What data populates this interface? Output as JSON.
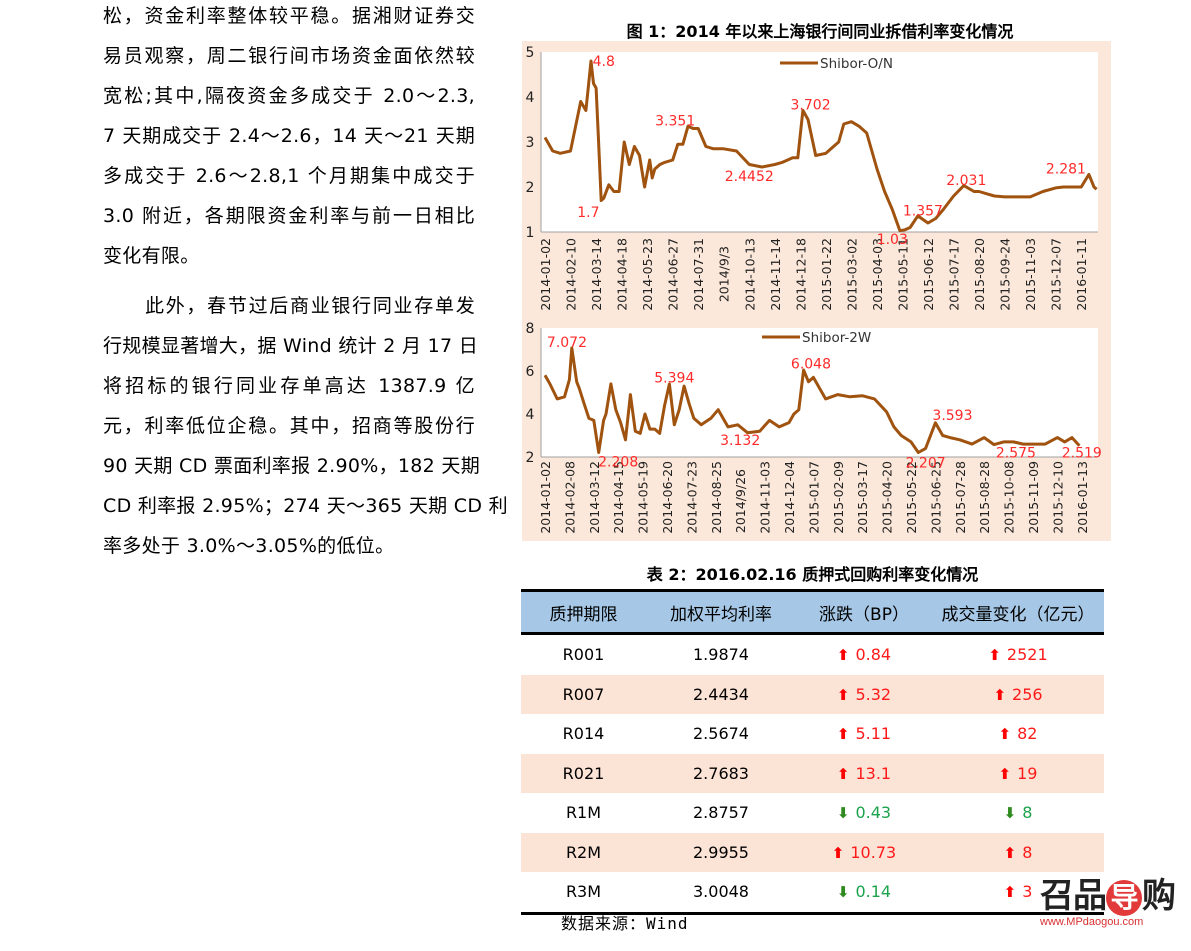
{
  "left_text": {
    "paragraph1_lines": [
      "松，资金利率整体较平稳。据湘财证券交",
      "易员观察，周二银行间市场资金面依然较",
      "宽松;其中,隔夜资金多成交于 2.0～2.3,",
      "7 天期成交于 2.4～2.6，14 天～21 天期",
      "多成交于 2.6～2.8,1 个月期集中成交于",
      "3.0 附近，各期限资金利率与前一日相比",
      "变化有限。"
    ],
    "paragraph2_lines": [
      "此外，春节过后商业银行同业存单发",
      "行规模显著增大，据 Wind 统计 2 月 17 日",
      "将招标的银行同业存单高达 1387.9 亿",
      "元，利率低位企稳。其中，招商等股份行",
      "90 天期 CD 票面利率报 2.90%，182 天期",
      "CD 利率报 2.95%；274 天～365 天期 CD 利",
      "率多处于 3.0%～3.05%的低位。"
    ]
  },
  "figure": {
    "title": "图 1：2014 年以来上海银行间同业拆借利率变化情况",
    "panel_color": "#fbe8da",
    "line_color": "#a0520f",
    "label_color": "#ff2a2a"
  },
  "chart_data": [
    {
      "type": "line",
      "title": "Shibor-O/N",
      "legend": [
        "Shibor-O/N"
      ],
      "xlabel": "",
      "ylabel": "",
      "ylim": [
        1,
        5
      ],
      "yticks": [
        1,
        2,
        3,
        4,
        5
      ],
      "grid": false,
      "legend_position": "top-center",
      "x_tick_labels": [
        "2014-01-02",
        "2014-02-10",
        "2014-03-14",
        "2014-04-18",
        "2014-05-23",
        "2014-06-27",
        "2014-07-31",
        "2014/9/3",
        "2014-10-13",
        "2014-11-14",
        "2014-12-18",
        "2015-01-22",
        "2015-03-02",
        "2015-04-03",
        "2015-05-11",
        "2015-06-12",
        "2015-07-17",
        "2015-08-20",
        "2015-09-24",
        "2015-11-03",
        "2015-12-07",
        "2016-01-11"
      ],
      "series": [
        {
          "name": "Shibor-O/N",
          "x": [
            0,
            0.3,
            0.6,
            1.0,
            1.4,
            1.6,
            1.8,
            1.9,
            2.0,
            2.1,
            2.2,
            2.3,
            2.5,
            2.7,
            2.9,
            3.1,
            3.3,
            3.5,
            3.7,
            3.9,
            4.1,
            4.2,
            4.3,
            4.5,
            4.7,
            5.0,
            5.2,
            5.4,
            5.6,
            5.8,
            6.0,
            6.3,
            6.6,
            7.0,
            7.5,
            8.0,
            8.5,
            9.0,
            9.3,
            9.5,
            9.7,
            9.9,
            10.1,
            10.3,
            10.6,
            11.0,
            11.3,
            11.5,
            11.7,
            12.0,
            12.3,
            12.6,
            13.0,
            13.3,
            13.6,
            13.9,
            14.1,
            14.3,
            14.6,
            15.0,
            15.3,
            15.6,
            16.0,
            16.4,
            16.8,
            17.0,
            17.3,
            17.6,
            18.0,
            18.5,
            19.0,
            19.5,
            20.0,
            20.3,
            20.6,
            21.0,
            21.3,
            21.5,
            21.6
          ],
          "values": [
            3.1,
            2.8,
            2.75,
            2.8,
            3.9,
            3.7,
            4.8,
            4.3,
            4.2,
            3.0,
            1.7,
            1.75,
            2.05,
            1.9,
            1.9,
            3.0,
            2.5,
            2.9,
            2.7,
            2.0,
            2.6,
            2.2,
            2.4,
            2.5,
            2.55,
            2.6,
            2.95,
            2.95,
            3.351,
            3.3,
            3.3,
            2.9,
            2.85,
            2.85,
            2.8,
            2.5,
            2.4452,
            2.5,
            2.55,
            2.6,
            2.65,
            2.65,
            3.702,
            3.5,
            2.7,
            2.75,
            2.9,
            3.0,
            3.4,
            3.45,
            3.35,
            3.2,
            2.4,
            1.9,
            1.5,
            1.03,
            1.05,
            1.1,
            1.357,
            1.2,
            1.3,
            1.5,
            1.8,
            2.031,
            1.9,
            1.9,
            1.85,
            1.8,
            1.78,
            1.78,
            1.78,
            1.9,
            1.98,
            2.0,
            2.0,
            2.0,
            2.281,
            2.0,
            1.95
          ]
        }
      ],
      "annotations": [
        {
          "text": "4.8",
          "x": 2.3,
          "y": 4.8
        },
        {
          "text": "1.7",
          "x": 1.7,
          "y": 1.45
        },
        {
          "text": "3.351",
          "x": 5.1,
          "y": 3.48
        },
        {
          "text": "2.4452",
          "x": 8.0,
          "y": 2.25
        },
        {
          "text": "3.702",
          "x": 10.4,
          "y": 3.83
        },
        {
          "text": "1.03",
          "x": 13.6,
          "y": 0.85
        },
        {
          "text": "1.357",
          "x": 14.8,
          "y": 1.48
        },
        {
          "text": "2.031",
          "x": 16.5,
          "y": 2.16
        },
        {
          "text": "2.281",
          "x": 20.4,
          "y": 2.41
        }
      ]
    },
    {
      "type": "line",
      "title": "Shibor-2W",
      "legend": [
        "Shibor-2W"
      ],
      "xlabel": "",
      "ylabel": "",
      "ylim": [
        2,
        8
      ],
      "yticks": [
        2,
        4,
        6,
        8
      ],
      "grid": false,
      "legend_position": "top-center",
      "x_tick_labels": [
        "2014-01-02",
        "2014-02-08",
        "2014-03-12",
        "2014-04-15",
        "2014-05-19",
        "2014-06-20",
        "2014-07-23",
        "2014-08-25",
        "2014/9/26",
        "2014-11-03",
        "2014-12-04",
        "2015-01-07",
        "2015-02-09",
        "2015-03-17",
        "2015-04-20",
        "2015-05-22",
        "2015-06-25",
        "2015-07-28",
        "2015-08-28",
        "2015-10-08",
        "2015-11-09",
        "2015-12-10",
        "2016-01-13"
      ],
      "series": [
        {
          "name": "Shibor-2W",
          "x": [
            0,
            0.2,
            0.5,
            0.8,
            1.0,
            1.1,
            1.3,
            1.4,
            1.6,
            1.8,
            2.0,
            2.2,
            2.4,
            2.5,
            2.7,
            2.9,
            3.1,
            3.3,
            3.5,
            3.7,
            3.9,
            4.1,
            4.3,
            4.5,
            4.7,
            4.9,
            5.1,
            5.3,
            5.5,
            5.7,
            5.9,
            6.1,
            6.4,
            6.8,
            7.1,
            7.5,
            7.9,
            8.3,
            8.8,
            9.2,
            9.6,
            10.0,
            10.2,
            10.4,
            10.6,
            10.8,
            11.0,
            11.5,
            12.0,
            12.5,
            13.0,
            13.5,
            14.0,
            14.3,
            14.6,
            15.0,
            15.3,
            15.6,
            16.0,
            16.3,
            16.6,
            17.0,
            17.5,
            18.0,
            18.4,
            18.8,
            19.2,
            19.6,
            20.0,
            20.5,
            21.0,
            21.3,
            21.6,
            21.9
          ],
          "values": [
            5.8,
            5.4,
            4.7,
            4.8,
            5.6,
            7.072,
            5.5,
            5.2,
            4.5,
            3.8,
            3.7,
            2.208,
            3.7,
            4.0,
            5.4,
            4.2,
            3.6,
            2.8,
            4.9,
            3.2,
            3.1,
            4.0,
            3.3,
            3.3,
            3.1,
            4.4,
            5.394,
            3.5,
            4.2,
            5.3,
            4.5,
            3.8,
            3.5,
            3.8,
            4.2,
            3.4,
            3.5,
            3.132,
            3.2,
            3.7,
            3.4,
            3.6,
            4.0,
            4.2,
            6.048,
            5.5,
            5.7,
            4.7,
            4.9,
            4.8,
            4.85,
            4.7,
            4.1,
            3.4,
            3.0,
            2.7,
            2.207,
            2.4,
            3.593,
            3.0,
            2.9,
            2.8,
            2.6,
            2.9,
            2.575,
            2.7,
            2.7,
            2.6,
            2.6,
            2.6,
            2.9,
            2.7,
            2.9,
            2.519
          ]
        }
      ],
      "annotations": [
        {
          "text": "7.072",
          "x": 0.9,
          "y": 7.35
        },
        {
          "text": "2.208",
          "x": 3.0,
          "y": 1.8
        },
        {
          "text": "5.394",
          "x": 5.3,
          "y": 5.7
        },
        {
          "text": "3.132",
          "x": 8.0,
          "y": 2.8
        },
        {
          "text": "6.048",
          "x": 10.9,
          "y": 6.35
        },
        {
          "text": "2.207",
          "x": 15.6,
          "y": 1.75
        },
        {
          "text": "3.593",
          "x": 16.7,
          "y": 3.95
        },
        {
          "text": "2.575",
          "x": 19.3,
          "y": 2.2
        },
        {
          "text": "2.519",
          "x": 22.0,
          "y": 2.2
        }
      ]
    }
  ],
  "table": {
    "title": "表 2：2016.02.16 质押式回购利率变化情况",
    "headers": [
      "质押期限",
      "加权平均利率",
      "涨跌（BP）",
      "成交量变化（亿元）"
    ],
    "header_color": "#a6c8e6",
    "alt_row_color": "#fbe3d6",
    "up_color": "#ff1a1a",
    "down_color": "#1aa34a",
    "rows": [
      {
        "term": "R001",
        "rate": "1.9874",
        "change_dir": "up",
        "change": "0.84",
        "volume_dir": "up",
        "volume": "2521"
      },
      {
        "term": "R007",
        "rate": "2.4434",
        "change_dir": "up",
        "change": "5.32",
        "volume_dir": "up",
        "volume": "256"
      },
      {
        "term": "R014",
        "rate": "2.5674",
        "change_dir": "up",
        "change": "5.11",
        "volume_dir": "up",
        "volume": "82"
      },
      {
        "term": "R021",
        "rate": "2.7683",
        "change_dir": "up",
        "change": "13.1",
        "volume_dir": "up",
        "volume": "19"
      },
      {
        "term": "R1M",
        "rate": "2.8757",
        "change_dir": "down",
        "change": "0.43",
        "volume_dir": "down",
        "volume": "8"
      },
      {
        "term": "R2M",
        "rate": "2.9955",
        "change_dir": "up",
        "change": "10.73",
        "volume_dir": "up",
        "volume": "8"
      },
      {
        "term": "R3M",
        "rate": "3.0048",
        "change_dir": "down",
        "change": "0.14",
        "volume_dir": "up",
        "volume": "3"
      }
    ],
    "source": "数据来源：Wind",
    "icons": {
      "up": "arrow-up-icon",
      "down": "arrow-down-icon"
    }
  },
  "watermark": {
    "logo_left": "召品",
    "logo_mid": "导",
    "logo_right": "购",
    "url": "www.MPdaogou.com"
  }
}
